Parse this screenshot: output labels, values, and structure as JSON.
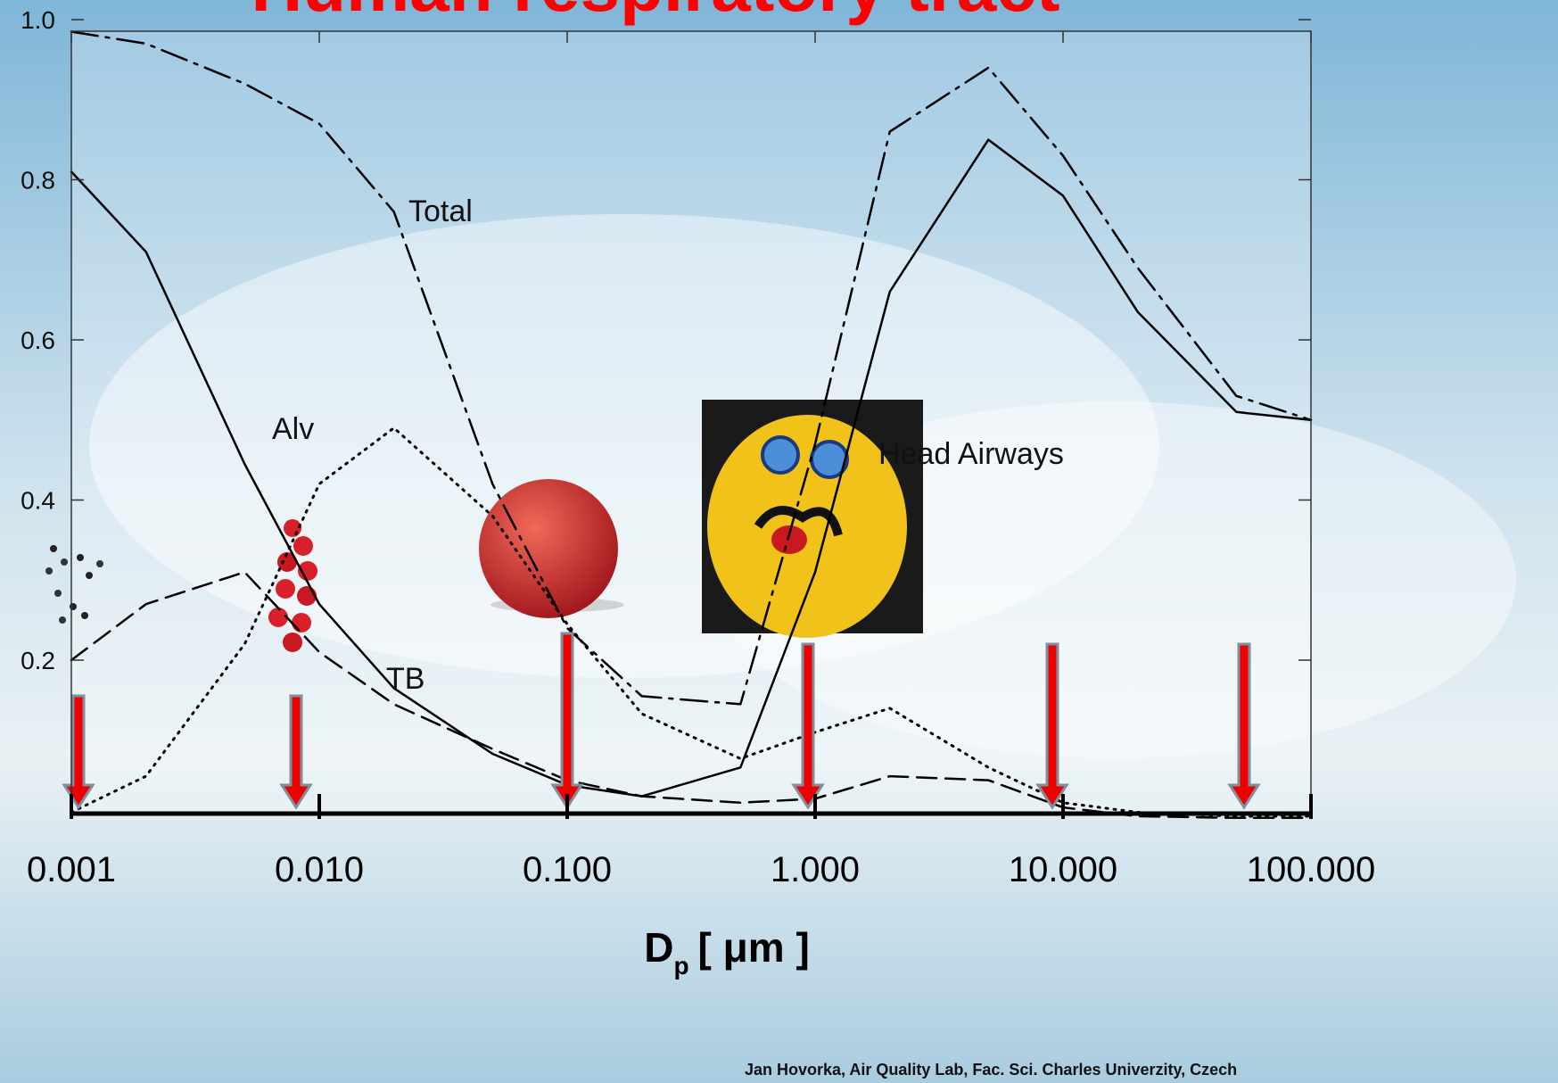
{
  "chart_data": {
    "type": "line",
    "title": "Human respiratory tract",
    "xlabel": "D",
    "xlabel_sub": "p",
    "xlabel_unit": "[ μm ]",
    "footer": "Jan Hovorka, Air Quality Lab, Fac. Sci. Charles Univerzity, Czech",
    "x": [
      0.001,
      0.002,
      0.005,
      0.01,
      0.02,
      0.05,
      0.1,
      0.2,
      0.5,
      1,
      2,
      5,
      10,
      20,
      50,
      100
    ],
    "xlim": [
      0.001,
      100
    ],
    "xscale": "log",
    "xticks": [
      {
        "value": 0.001,
        "label": "0.001"
      },
      {
        "value": 0.01,
        "label": "0.010"
      },
      {
        "value": 0.1,
        "label": "0.100"
      },
      {
        "value": 1,
        "label": "1.000"
      },
      {
        "value": 10,
        "label": "10.000"
      },
      {
        "value": 100,
        "label": "100.000"
      }
    ],
    "ylim": [
      0,
      1
    ],
    "yticks": [
      0.2,
      0.4,
      0.6,
      0.8,
      {
        "value": 1,
        "label": "1.0"
      }
    ],
    "series": [
      {
        "name": "Total",
        "color": "#000000",
        "style": "dashdot",
        "values": [
          0.985,
          0.97,
          0.92,
          0.87,
          0.76,
          0.42,
          0.24,
          0.155,
          0.145,
          0.47,
          0.86,
          0.94,
          0.83,
          0.69,
          0.53,
          0.5
        ]
      },
      {
        "name": "Head Airways",
        "color": "#000000",
        "style": "solid",
        "values": [
          0.81,
          0.71,
          0.445,
          0.27,
          0.165,
          0.083,
          0.044,
          0.03,
          0.066,
          0.31,
          0.66,
          0.85,
          0.78,
          0.635,
          0.51,
          0.5
        ]
      },
      {
        "name": "Alv",
        "color": "#000000",
        "style": "dotted",
        "values": [
          0.01,
          0.055,
          0.22,
          0.42,
          0.49,
          0.38,
          0.245,
          0.133,
          0.077,
          0.11,
          0.14,
          0.066,
          0.022,
          0.01,
          0.005,
          0.005
        ]
      },
      {
        "name": "TB",
        "color": "#000000",
        "style": "dashed",
        "values": [
          0.2,
          0.27,
          0.31,
          0.21,
          0.145,
          0.089,
          0.05,
          0.03,
          0.022,
          0.027,
          0.055,
          0.05,
          0.016,
          0.005,
          0.003,
          0.003
        ]
      }
    ]
  }
}
